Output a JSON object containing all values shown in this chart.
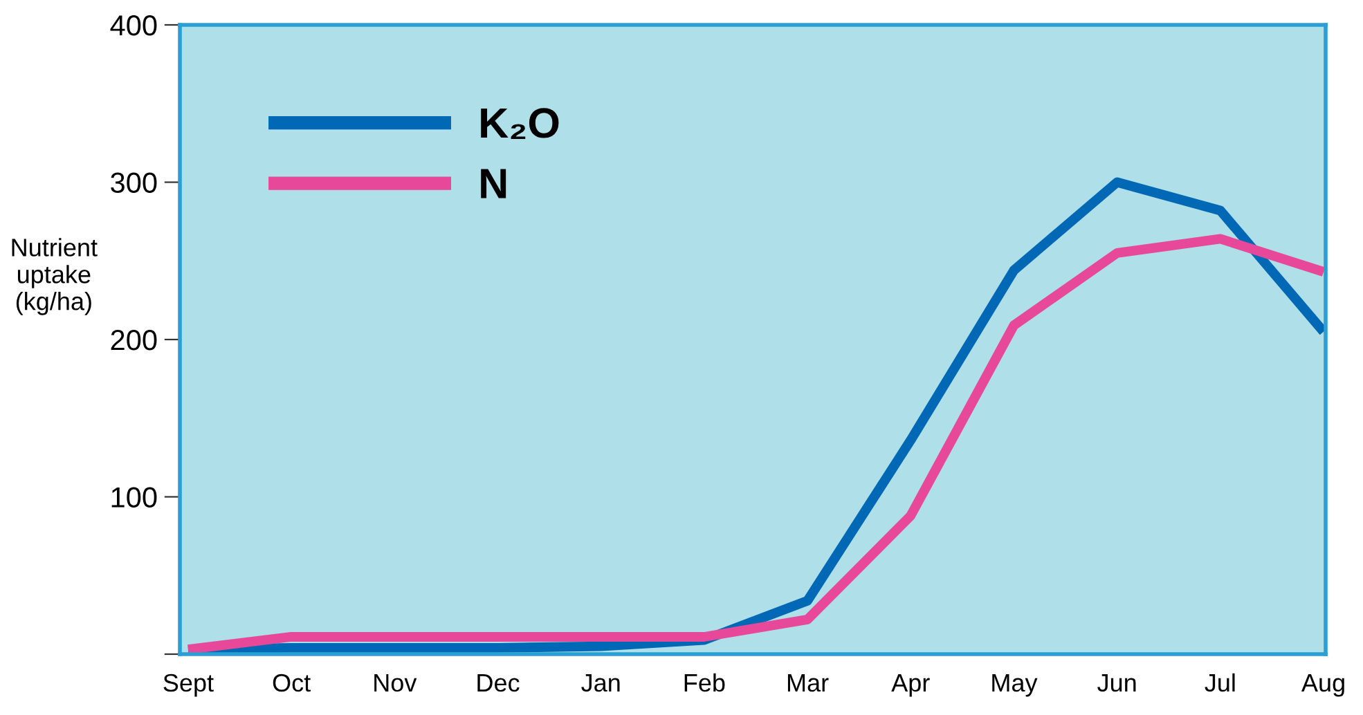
{
  "chart_data": {
    "type": "line",
    "ylabel": "Nutrient\nuptake\n(kg/ha)",
    "categories": [
      "Sept",
      "Oct",
      "Nov",
      "Dec",
      "Jan",
      "Feb",
      "Mar",
      "Apr",
      "May",
      "Jun",
      "Jul",
      "Aug"
    ],
    "ylim": [
      0,
      400
    ],
    "yticks": [
      {
        "value": 0,
        "label": null
      },
      100,
      200,
      300,
      400
    ],
    "legend": "top left",
    "grid": false,
    "marker": "none",
    "line_style": "solid",
    "series": [
      {
        "name": "K₂O",
        "color": "#0068b4",
        "values": [
          3,
          4,
          4,
          4,
          5,
          9,
          34,
          136,
          244,
          300,
          282,
          205
        ]
      },
      {
        "name": "N",
        "color": "#e8489a",
        "values": [
          3,
          11,
          11,
          11,
          11,
          11,
          22,
          88,
          209,
          255,
          264,
          243
        ]
      }
    ]
  }
}
